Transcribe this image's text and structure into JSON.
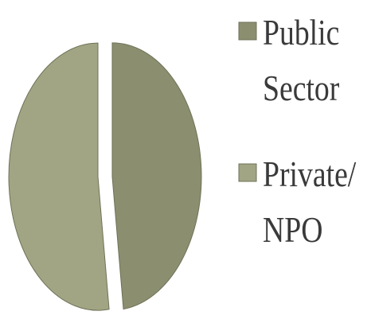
{
  "chart_data": {
    "type": "pie",
    "series": [
      {
        "name": "Public Sector",
        "color": "#8b8e6f",
        "values": [
          48
        ]
      },
      {
        "name": "Private/NPO",
        "color": "#a2a584",
        "values": [
          52
        ]
      }
    ],
    "legend": "right"
  }
}
